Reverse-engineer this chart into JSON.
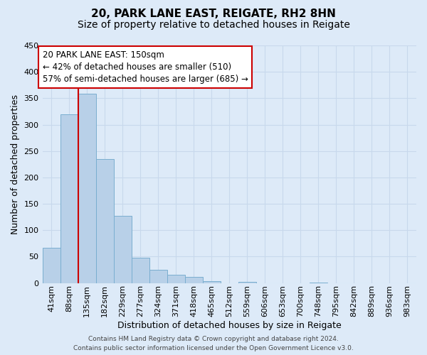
{
  "title_line1": "20, PARK LANE EAST, REIGATE, RH2 8HN",
  "title_line2": "Size of property relative to detached houses in Reigate",
  "xlabel": "Distribution of detached houses by size in Reigate",
  "ylabel": "Number of detached properties",
  "bin_labels": [
    "41sqm",
    "88sqm",
    "135sqm",
    "182sqm",
    "229sqm",
    "277sqm",
    "324sqm",
    "371sqm",
    "418sqm",
    "465sqm",
    "512sqm",
    "559sqm",
    "606sqm",
    "653sqm",
    "700sqm",
    "748sqm",
    "795sqm",
    "842sqm",
    "889sqm",
    "936sqm",
    "983sqm"
  ],
  "bar_values": [
    67,
    320,
    358,
    235,
    127,
    48,
    25,
    15,
    11,
    3,
    0,
    2,
    0,
    0,
    0,
    1,
    0,
    0,
    0,
    0,
    0
  ],
  "bar_color": "#b8d0e8",
  "bar_edge_color": "#7aaed0",
  "grid_color": "#c8d8ec",
  "background_color": "#ddeaf8",
  "vline_x_bar_index": 2,
  "vline_color": "#cc0000",
  "annotation_title": "20 PARK LANE EAST: 150sqm",
  "annotation_line1": "← 42% of detached houses are smaller (510)",
  "annotation_line2": "57% of semi-detached houses are larger (685) →",
  "annotation_box_color": "#ffffff",
  "annotation_box_edge": "#cc0000",
  "ylim": [
    0,
    450
  ],
  "yticks": [
    0,
    50,
    100,
    150,
    200,
    250,
    300,
    350,
    400,
    450
  ],
  "footer_line1": "Contains HM Land Registry data © Crown copyright and database right 2024.",
  "footer_line2": "Contains public sector information licensed under the Open Government Licence v3.0.",
  "title_fontsize": 11,
  "subtitle_fontsize": 10,
  "tick_fontsize": 8,
  "ylabel_fontsize": 9,
  "xlabel_fontsize": 9,
  "annotation_fontsize": 8.5,
  "footer_fontsize": 6.5
}
